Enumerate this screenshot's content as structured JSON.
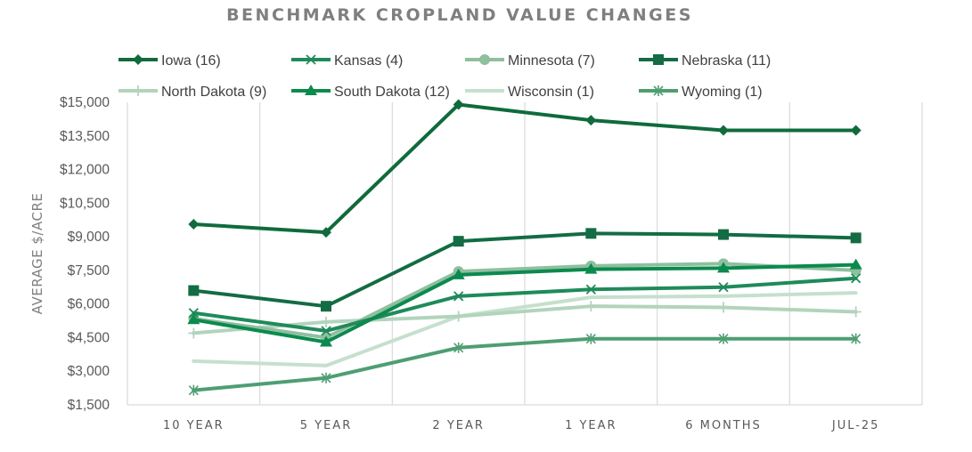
{
  "chart_data": {
    "type": "line",
    "title": "BENCHMARK CROPLAND VALUE CHANGES",
    "xlabel": "",
    "ylabel": "AVERAGE $/ACRE",
    "categories": [
      "10 YEAR",
      "5 YEAR",
      "2 YEAR",
      "1 YEAR",
      "6 MONTHS",
      "JUL-25"
    ],
    "ylim": [
      1500,
      15000
    ],
    "ytick_values": [
      1500,
      3000,
      4500,
      6000,
      7500,
      9000,
      10500,
      12000,
      13500,
      15000
    ],
    "ytick_labels": [
      "$1,500",
      "$3,000",
      "$4,500",
      "$6,000",
      "$7,500",
      "$9,000",
      "$10,500",
      "$12,000",
      "$13,500",
      "$15,000"
    ],
    "grid": "vertical",
    "legend_position": "top",
    "series": [
      {
        "name": "Iowa (16)",
        "color": "#0f6b3c",
        "marker": "diamond",
        "values": [
          9560,
          9200,
          14900,
          14200,
          13750,
          13750
        ]
      },
      {
        "name": "Kansas (4)",
        "color": "#1f8a5a",
        "marker": "x",
        "values": [
          5600,
          4800,
          6350,
          6650,
          6750,
          7150
        ]
      },
      {
        "name": "Minnesota (7)",
        "color": "#8fbf9f",
        "marker": "circle",
        "values": [
          5350,
          4500,
          7450,
          7700,
          7800,
          7500
        ]
      },
      {
        "name": "Nebraska (11)",
        "color": "#136c43",
        "marker": "square",
        "values": [
          6600,
          5900,
          8800,
          9150,
          9100,
          8950
        ]
      },
      {
        "name": "North Dakota (9)",
        "color": "#b2d4bc",
        "marker": "plus",
        "values": [
          4700,
          5200,
          5450,
          5900,
          5850,
          5650
        ]
      },
      {
        "name": "South Dakota (12)",
        "color": "#0b8a4e",
        "marker": "triangle",
        "values": [
          5300,
          4300,
          7300,
          7550,
          7600,
          7750
        ]
      },
      {
        "name": "Wisconsin (1)",
        "color": "#c5e0cd",
        "marker": "none",
        "values": [
          3450,
          3250,
          5450,
          6300,
          6350,
          6500
        ]
      },
      {
        "name": "Wyoming (1)",
        "color": "#4e9e72",
        "marker": "star",
        "values": [
          2150,
          2700,
          4050,
          4450,
          4450,
          4450
        ]
      }
    ]
  }
}
